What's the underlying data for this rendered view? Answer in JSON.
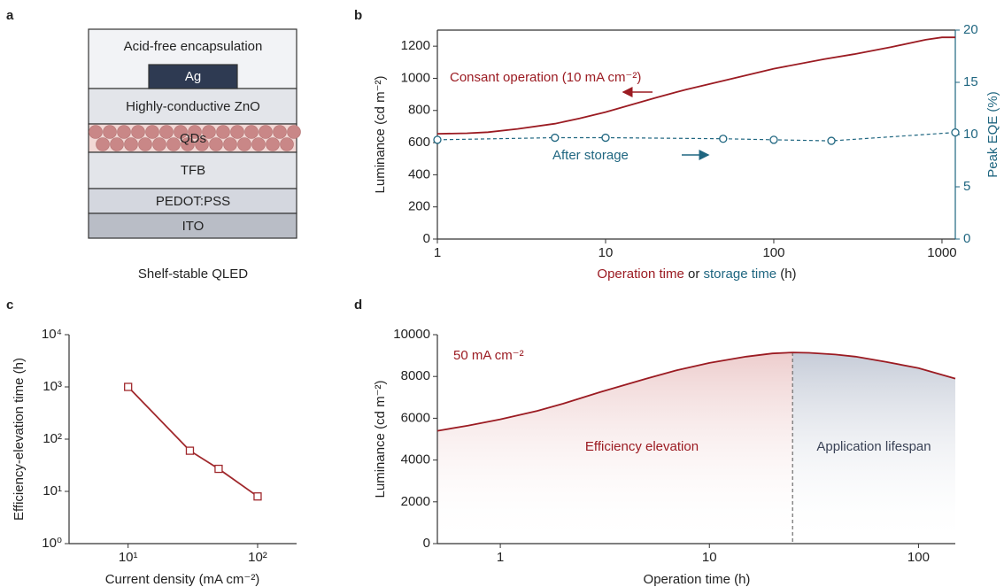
{
  "diagram": {
    "panel_label": "a",
    "layers": [
      "Acid-free encapsulation",
      "Ag",
      "Highly-conductive ZnO",
      "QDs",
      "TFB",
      "PEDOT:PSS",
      "ITO"
    ],
    "caption": "Shelf-stable QLED"
  },
  "chart_data": [
    {
      "type": "line",
      "panel_label": "b",
      "xscale": "log",
      "xlabel": [
        "Operation time",
        "or",
        "storage time",
        "(h)"
      ],
      "ylabel": "Luminance (cd m⁻²)",
      "y2label": "Peak EQE (%)",
      "y2color": "#1f6680",
      "annotations": [
        "Consant operation (10 mA cm⁻²)",
        "After storage"
      ],
      "xlim": [
        1,
        1200
      ],
      "xticks": [
        1,
        10,
        100,
        1000
      ],
      "ylim": [
        0,
        1300
      ],
      "yticks": [
        0,
        200,
        400,
        600,
        800,
        1000,
        1200
      ],
      "y2lim": [
        0,
        20
      ],
      "y2ticks": [
        0,
        5,
        10,
        15,
        20
      ],
      "series": [
        {
          "color": "#9b1b22",
          "x": [
            1,
            1.5,
            2,
            3,
            5,
            7,
            10,
            20,
            30,
            50,
            100,
            200,
            300,
            500,
            800,
            1000,
            1200
          ],
          "values": [
            655,
            658,
            665,
            685,
            718,
            750,
            790,
            880,
            930,
            985,
            1060,
            1120,
            1150,
            1195,
            1240,
            1255,
            1255
          ]
        },
        {
          "color": "#1f6680",
          "axis": "y2",
          "marker": "circle",
          "dash": true,
          "x": [
            1,
            5,
            10,
            50,
            100,
            220,
            1200
          ],
          "values": [
            9.5,
            9.7,
            9.7,
            9.6,
            9.5,
            9.4,
            10.2
          ]
        }
      ]
    },
    {
      "type": "line",
      "panel_label": "c",
      "xscale": "log",
      "yscale": "log",
      "xlabel": "Current density (mA cm⁻²)",
      "ylabel": "Efficiency-elevation time (h)",
      "xlim": [
        3.5,
        200
      ],
      "xticks": [
        {
          "value": 10,
          "label": "10¹"
        },
        {
          "value": 100,
          "label": "10²"
        }
      ],
      "ylim": [
        1,
        10000
      ],
      "yticks": [
        {
          "value": 1,
          "label": "10⁰"
        },
        {
          "value": 10,
          "label": "10¹"
        },
        {
          "value": 100,
          "label": "10²"
        },
        {
          "value": 1000,
          "label": "10³"
        },
        {
          "value": 10000,
          "label": "10⁴"
        }
      ],
      "series": [
        {
          "color": "#a0282c",
          "marker": "square",
          "x": [
            10,
            30,
            50,
            100
          ],
          "values": [
            1000,
            60,
            27,
            8
          ]
        }
      ]
    },
    {
      "type": "area",
      "panel_label": "d",
      "xscale": "log",
      "xlabel": "Operation time (h)",
      "ylabel": "Luminance (cd m⁻²)",
      "annotations": [
        "50 mA cm⁻²",
        "Efficiency elevation",
        "Application lifespan"
      ],
      "fill_colors": [
        "#e7bcbc",
        "#bcc3d1"
      ],
      "xlim": [
        0.5,
        150
      ],
      "xticks": [
        1,
        10,
        100
      ],
      "ylim": [
        0,
        10000
      ],
      "yticks": [
        0,
        2000,
        4000,
        6000,
        8000,
        10000
      ],
      "series": [
        {
          "color": "#9b1b22",
          "x": [
            0.5,
            0.7,
            1,
            1.5,
            2,
            3,
            5,
            7,
            10,
            15,
            20,
            25,
            30,
            40,
            50,
            70,
            100,
            150
          ],
          "values": [
            5400,
            5650,
            5950,
            6350,
            6700,
            7250,
            7900,
            8300,
            8650,
            8950,
            9100,
            9150,
            9130,
            9050,
            8950,
            8700,
            8400,
            7900
          ]
        }
      ]
    }
  ]
}
